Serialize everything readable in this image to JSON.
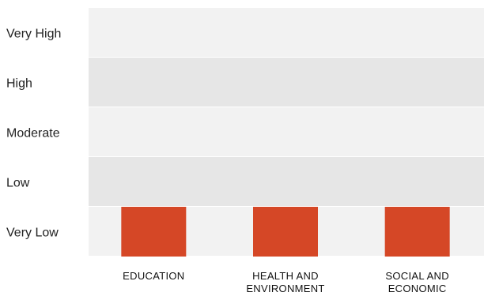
{
  "chart_data": {
    "type": "bar",
    "y_levels": [
      "Very Low",
      "Low",
      "Moderate",
      "High",
      "Very High"
    ],
    "categories": [
      [
        "EDUCATION"
      ],
      [
        "HEALTH AND",
        "ENVIRONMENT"
      ],
      [
        "SOCIAL AND",
        "ECONOMIC"
      ]
    ],
    "values": [
      "Very Low",
      "Very Low",
      "Very Low"
    ],
    "grid": false,
    "legend": "none"
  },
  "colors": {
    "bar": "#d54726",
    "band_light": "#f2f2f2",
    "band_dark": "#e6e6e6",
    "text": "#222222"
  }
}
